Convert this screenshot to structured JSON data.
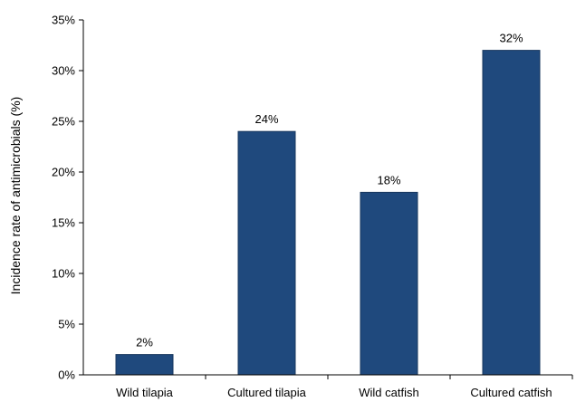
{
  "chart_data": {
    "type": "bar",
    "categories": [
      "Wild tilapia",
      "Cultured tilapia",
      "Wild catfish",
      "Cultured catfish"
    ],
    "values": [
      2,
      24,
      18,
      32
    ],
    "data_labels": [
      "2%",
      "24%",
      "18%",
      "32%"
    ],
    "title": "",
    "xlabel": "",
    "ylabel": "Incidence rate of antimicrobials (%)",
    "ylim": [
      0,
      35
    ],
    "yticks": [
      0,
      5,
      10,
      15,
      20,
      25,
      30,
      35
    ],
    "ytick_labels": [
      "0%",
      "5%",
      "10%",
      "15%",
      "20%",
      "25%",
      "30%",
      "35%"
    ],
    "grid": false,
    "bar_color": "#1f497d",
    "bar_edge_color": "#17375e"
  }
}
